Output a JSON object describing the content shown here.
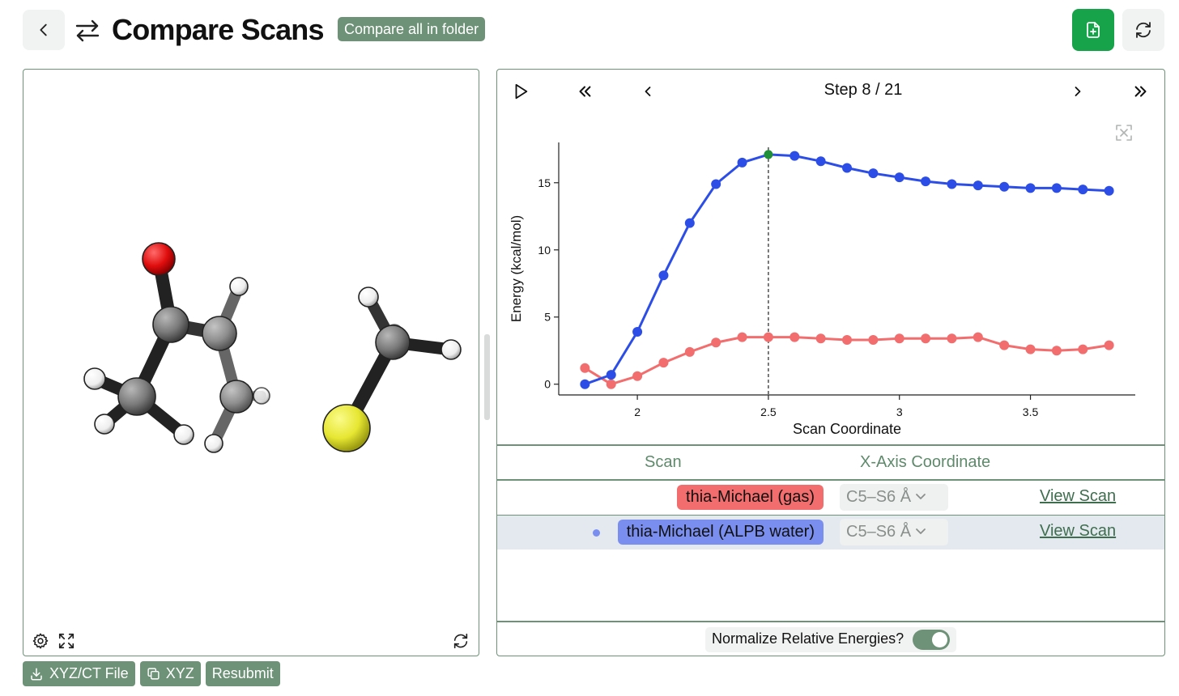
{
  "header": {
    "back_icon": "chevron-left-icon",
    "swap_icon": "arrows-left-right-icon",
    "title": "Compare Scans",
    "compare_all_label": "Compare all in folder",
    "new_file_icon": "file-plus-icon",
    "refresh_icon": "refresh-icon",
    "accent": "#17a34a"
  },
  "viewer": {
    "settings_icon": "gear-icon",
    "fullscreen_icon": "expand-icon",
    "reset_icon": "refresh-icon",
    "atom_colors": {
      "O": "#dd1111",
      "S": "#e6e632",
      "C": "#7a7a7a",
      "H": "#ffffff"
    }
  },
  "actions": {
    "download_label": "XYZ/CT File",
    "copy_label": "XYZ",
    "resubmit_label": "Resubmit"
  },
  "player": {
    "play_icon": "play-icon",
    "first_icon": "chevrons-left-icon",
    "prev_icon": "chevron-left-icon",
    "step_text": "Step 8 / 21",
    "next_icon": "chevron-right-icon",
    "last_icon": "chevrons-right-icon",
    "chart_expand_icon": "expand-icon"
  },
  "chart_data": {
    "type": "line",
    "xlabel": "Scan Coordinate",
    "ylabel": "Energy (kcal/mol)",
    "xlim": [
      1.7,
      3.9
    ],
    "ylim": [
      -0.8,
      18
    ],
    "xticks": [
      2,
      2.5,
      3,
      3.5
    ],
    "yticks": [
      0,
      5,
      10,
      15
    ],
    "grid": false,
    "x": [
      1.8,
      1.9,
      2.0,
      2.1,
      2.2,
      2.3,
      2.4,
      2.5,
      2.6,
      2.7,
      2.8,
      2.9,
      3.0,
      3.1,
      3.2,
      3.3,
      3.4,
      3.5,
      3.6,
      3.7,
      3.8
    ],
    "current_x": 2.5,
    "series": [
      {
        "name": "thia-Michael (gas)",
        "color": "#f26d6d",
        "values": [
          1.2,
          0.0,
          0.6,
          1.6,
          2.4,
          3.1,
          3.5,
          3.5,
          3.5,
          3.4,
          3.3,
          3.3,
          3.4,
          3.4,
          3.4,
          3.5,
          2.9,
          2.6,
          2.5,
          2.6,
          2.9
        ]
      },
      {
        "name": "thia-Michael (ALPB water)",
        "color": "#2c4ee6",
        "values": [
          0.0,
          0.7,
          3.9,
          8.1,
          12.0,
          14.9,
          16.5,
          17.1,
          17.0,
          16.6,
          16.1,
          15.7,
          15.4,
          15.1,
          14.9,
          14.8,
          14.7,
          14.6,
          14.6,
          14.5,
          14.4
        ]
      }
    ],
    "highlight_color": "#1f8f3a"
  },
  "table": {
    "headers": {
      "scan": "Scan",
      "coordinate": "X-Axis Coordinate"
    },
    "rows": [
      {
        "scan": "thia-Michael (gas)",
        "color": "#f26d6d",
        "coordinate": "C5–S6 Å",
        "link": "View Scan",
        "selected": false
      },
      {
        "scan": "thia-Michael (ALPB water)",
        "color": "#7a8ef0",
        "coordinate": "C5–S6 Å",
        "link": "View Scan",
        "selected": true
      }
    ]
  },
  "normalize": {
    "label": "Normalize Relative Energies?",
    "enabled": true
  }
}
